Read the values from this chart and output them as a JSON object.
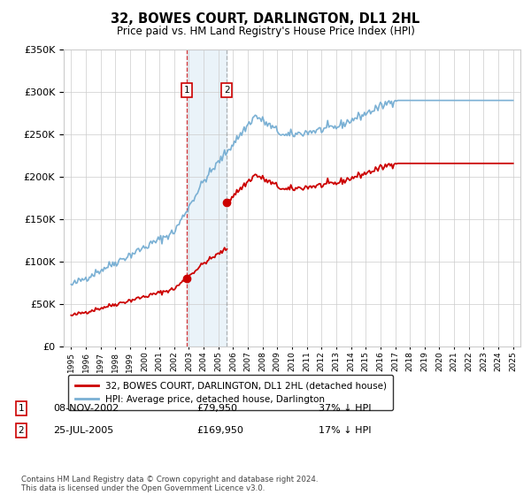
{
  "title": "32, BOWES COURT, DARLINGTON, DL1 2HL",
  "subtitle": "Price paid vs. HM Land Registry's House Price Index (HPI)",
  "legend_property": "32, BOWES COURT, DARLINGTON, DL1 2HL (detached house)",
  "legend_hpi": "HPI: Average price, detached house, Darlington",
  "footer": "Contains HM Land Registry data © Crown copyright and database right 2024.\nThis data is licensed under the Open Government Licence v3.0.",
  "sale1_date": "08-NOV-2002",
  "sale1_price_str": "£79,950",
  "sale1_hpi": "37% ↓ HPI",
  "sale2_date": "25-JUL-2005",
  "sale2_price_str": "£169,950",
  "sale2_hpi": "17% ↓ HPI",
  "sale1_year": 2002.87,
  "sale2_year": 2005.57,
  "sale1_price_val": 79950,
  "sale2_price_val": 169950,
  "ylim": [
    0,
    350000
  ],
  "xlim_start": 1994.5,
  "xlim_end": 2025.5,
  "property_color": "#cc0000",
  "hpi_color": "#7ab0d4",
  "highlight_color": "#d6e8f5",
  "grid_color": "#cccccc",
  "background_color": "#ffffff"
}
